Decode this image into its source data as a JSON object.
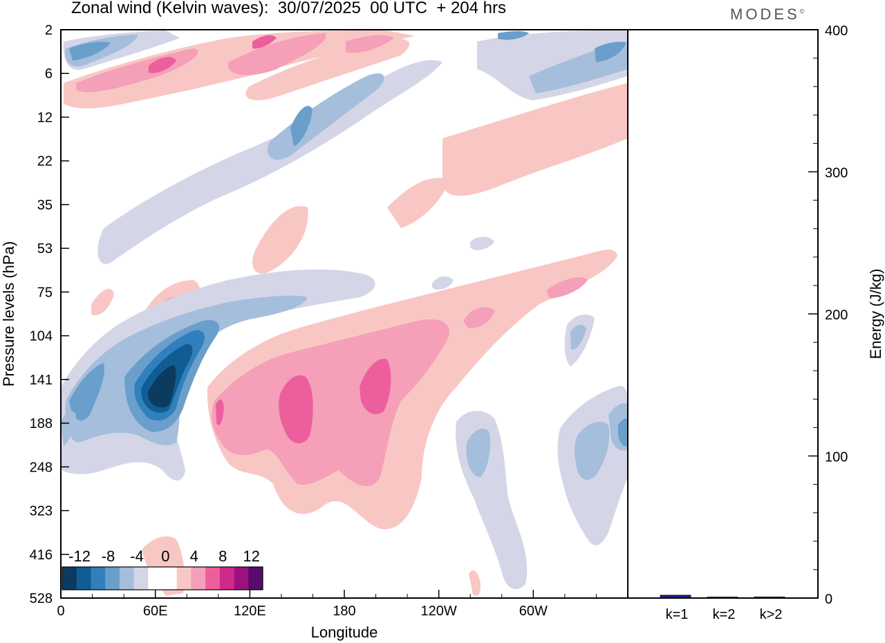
{
  "header": {
    "title": "Zonal wind (Kelvin waves):  30/07/2025  00 UTC  + 204 hrs",
    "logo_text": "MODES",
    "logo_mark": "©"
  },
  "chart_data": [
    {
      "type": "heatmap",
      "title": "Zonal wind (Kelvin waves):  30/07/2025  00 UTC  + 204 hrs",
      "xlabel": "Longitude",
      "ylabel": "Pressure levels (hPa)",
      "x_ticks": [
        "0",
        "60E",
        "120E",
        "180",
        "120W",
        "60W"
      ],
      "x_tick_degrees": [
        0,
        60,
        120,
        180,
        240,
        300
      ],
      "x_range": [
        0,
        360
      ],
      "y_ticks": [
        "2",
        "6",
        "12",
        "22",
        "35",
        "53",
        "75",
        "104",
        "141",
        "188",
        "248",
        "323",
        "416",
        "528"
      ],
      "colorbar": {
        "tick_labels": [
          "-12",
          "-8",
          "-4",
          "0",
          "4",
          "8",
          "12"
        ],
        "colors": [
          "#0b3b5e",
          "#0f5d94",
          "#2f80bd",
          "#6a9fcb",
          "#a5bedc",
          "#d4d6e8",
          "#ffffff",
          "#ffffff",
          "#f8c7c4",
          "#f59fb8",
          "#ed5f9c",
          "#cf2a8a",
          "#9c127d",
          "#5a0a6c"
        ]
      },
      "features": [
        {
          "name": "strong easterly core",
          "sign": "negative",
          "lon": 65,
          "level_hPa": 141,
          "peak": -12
        },
        {
          "name": "westerly core 150E",
          "sign": "positive",
          "lon": 150,
          "level_hPa": 160,
          "peak": 8
        },
        {
          "name": "westerly core 195E",
          "sign": "positive",
          "lon": 195,
          "level_hPa": 141,
          "peak": 8
        },
        {
          "name": "upper easterly band",
          "sign": "negative",
          "lon": 150,
          "level_hPa": 14,
          "peak": -8
        },
        {
          "name": "upper westerly band",
          "sign": "positive",
          "lon": 60,
          "level_hPa": 5,
          "peak": 8
        }
      ]
    },
    {
      "type": "bar",
      "title": "",
      "xlabel": "",
      "ylabel": "Energy (J/kg)",
      "categories": [
        "k=1",
        "k=2",
        "k>2"
      ],
      "values": [
        2,
        0.3,
        0.8
      ],
      "ylim": [
        0,
        400
      ],
      "y_ticks": [
        "0",
        "100",
        "200",
        "300",
        "400"
      ],
      "bar_color": "#1a1a8c"
    }
  ]
}
